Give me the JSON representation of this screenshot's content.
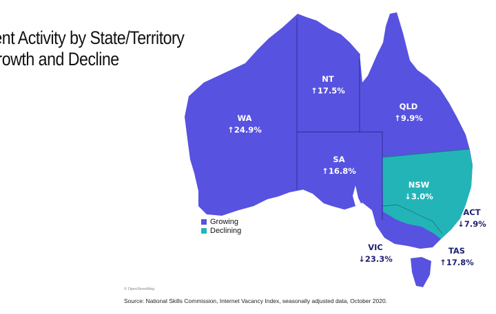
{
  "title": {
    "line1": "nent Activity by State/Territory",
    "line2": "Growth and Decline"
  },
  "colors": {
    "growing": "#5752e0",
    "declining": "#23b4b8",
    "label_on_map": "#ffffff",
    "label_off_map": "#1f2270"
  },
  "regions": [
    {
      "code": "WA",
      "change": "↑24.9%",
      "status": "growing"
    },
    {
      "code": "NT",
      "change": "↑17.5%",
      "status": "growing"
    },
    {
      "code": "QLD",
      "change": "↑9.9%",
      "status": "growing"
    },
    {
      "code": "SA",
      "change": "↑16.8%",
      "status": "growing"
    },
    {
      "code": "NSW",
      "change": "↓3.0%",
      "status": "declining"
    },
    {
      "code": "ACT",
      "change": "↓7.9%",
      "status": "declining"
    },
    {
      "code": "VIC",
      "change": "↓23.3%",
      "status": "declining"
    },
    {
      "code": "TAS",
      "change": "↑17.8%",
      "status": "growing"
    }
  ],
  "legend": [
    {
      "label": "Growing",
      "color": "#5752e0"
    },
    {
      "label": "Declining",
      "color": "#23b4b8"
    }
  ],
  "attribution": "© OpenStreetMap",
  "source": "Source: National Skills Commission, Internet Vacancy Index, seasonally adjusted data, October 2020."
}
